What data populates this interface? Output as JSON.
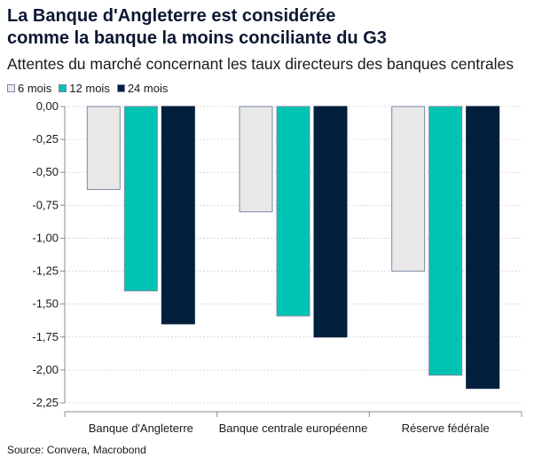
{
  "title_lines": [
    "La Banque d'Angleterre est considérée",
    "comme la banque la moins conciliante du G3"
  ],
  "subtitle": "Attentes du marché concernant les taux directeurs des banques centrales",
  "source": "Source: Convera, Macrobond",
  "colors": {
    "series_6": "#e8e8e8",
    "series_12": "#00c4b3",
    "series_24": "#02203d",
    "bar_border": "#7b8aa6",
    "grid": "#d9d9d9",
    "axis": "#8c8c8c"
  },
  "chart_data": {
    "type": "bar",
    "categories": [
      "Banque d'Angleterre",
      "Banque centrale européenne",
      "Réserve fédérale"
    ],
    "series": [
      {
        "name": "6 mois",
        "values": [
          -0.63,
          -0.8,
          -1.25
        ]
      },
      {
        "name": "12 mois",
        "values": [
          -1.4,
          -1.59,
          -2.04
        ]
      },
      {
        "name": "24 mois",
        "values": [
          -1.65,
          -1.75,
          -2.14
        ]
      }
    ],
    "ylim": [
      -2.25,
      0
    ],
    "yticks": [
      "0,00",
      "-0,25",
      "-0,50",
      "-0,75",
      "-1,00",
      "-1,25",
      "-1,50",
      "-1,75",
      "-2,00",
      "-2,25"
    ],
    "grid": true,
    "legend": "top-left"
  }
}
